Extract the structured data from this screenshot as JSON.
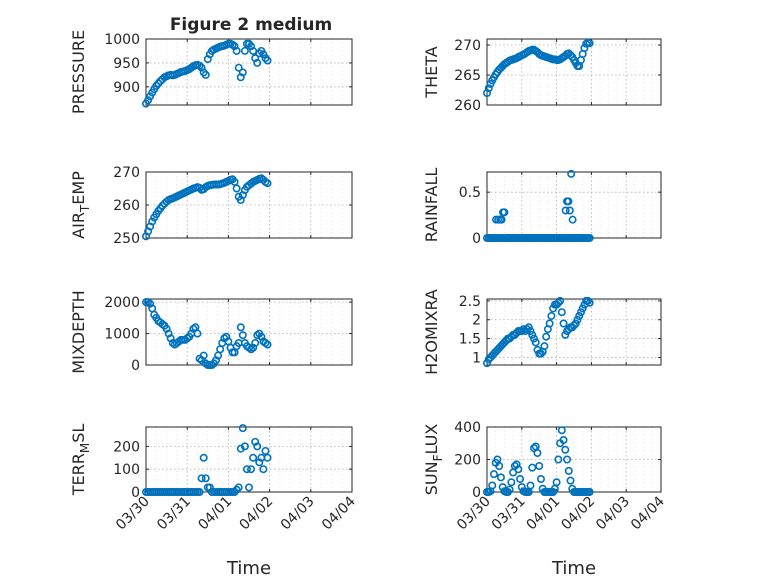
{
  "figure": {
    "title": "Figure 2 medium",
    "marker_color": "#0072BD",
    "marker": "circle"
  },
  "chart_data": [
    {
      "type": "scatter",
      "title": "Figure 2 medium",
      "ylabel": "PRESSURE",
      "ylim": [
        862,
        1000
      ],
      "yticks": [
        900,
        950,
        1000
      ],
      "yticklabels": [
        "900",
        "950",
        "1000"
      ],
      "xlim": [
        0,
        5
      ],
      "xticks": [
        0,
        1,
        2,
        3,
        4,
        5
      ],
      "xticklabels": [],
      "grid": true,
      "x": [
        0,
        0.05,
        0.1,
        0.15,
        0.2,
        0.25,
        0.3,
        0.35,
        0.4,
        0.45,
        0.5,
        0.55,
        0.6,
        0.65,
        0.7,
        0.75,
        0.8,
        0.85,
        0.9,
        0.95,
        1,
        1.05,
        1.1,
        1.15,
        1.2,
        1.25,
        1.3,
        1.35,
        1.4,
        1.45,
        1.5,
        1.55,
        1.6,
        1.65,
        1.7,
        1.75,
        1.8,
        1.85,
        1.9,
        1.95,
        2,
        2.05,
        2.1,
        2.15,
        2.2,
        2.25,
        2.3,
        2.35,
        2.4,
        2.45,
        2.5,
        2.55,
        2.6,
        2.65,
        2.7,
        2.75,
        2.8,
        2.85,
        2.9,
        2.95
      ],
      "y": [
        865,
        872,
        880,
        888,
        895,
        902,
        907,
        912,
        916,
        920,
        922,
        924,
        925,
        924,
        925,
        927,
        929,
        931,
        932,
        933,
        935,
        937,
        940,
        943,
        945,
        946,
        944,
        940,
        930,
        925,
        958,
        968,
        975,
        978,
        980,
        982,
        984,
        985,
        986,
        988,
        990,
        990,
        988,
        985,
        975,
        940,
        920,
        930,
        975,
        990,
        990,
        985,
        975,
        960,
        950,
        970,
        975,
        968,
        960,
        955
      ]
    },
    {
      "type": "scatter",
      "ylabel": "THETA",
      "ylim": [
        260,
        271
      ],
      "yticks": [
        260,
        265,
        270
      ],
      "yticklabels": [
        "260",
        "265",
        "270"
      ],
      "xlim": [
        0,
        5
      ],
      "xticks": [
        0,
        1,
        2,
        3,
        4,
        5
      ],
      "xticklabels": [],
      "grid": true,
      "x": [
        0,
        0.05,
        0.1,
        0.15,
        0.2,
        0.25,
        0.3,
        0.35,
        0.4,
        0.45,
        0.5,
        0.55,
        0.6,
        0.65,
        0.7,
        0.75,
        0.8,
        0.85,
        0.9,
        0.95,
        1,
        1.05,
        1.1,
        1.15,
        1.2,
        1.25,
        1.3,
        1.35,
        1.4,
        1.45,
        1.5,
        1.55,
        1.6,
        1.65,
        1.7,
        1.75,
        1.8,
        1.85,
        1.9,
        1.95,
        2,
        2.05,
        2.1,
        2.15,
        2.2,
        2.25,
        2.3,
        2.35,
        2.4,
        2.45,
        2.5,
        2.55,
        2.6,
        2.65,
        2.7,
        2.75,
        2.8,
        2.85,
        2.9,
        2.95
      ],
      "y": [
        262,
        262.8,
        263.5,
        264.1,
        264.6,
        265.1,
        265.5,
        265.9,
        266.2,
        266.5,
        266.8,
        267,
        267.2,
        267.4,
        267.5,
        267.6,
        267.7,
        267.8,
        268,
        268.1,
        268.3,
        268.4,
        268.6,
        268.8,
        269,
        269.1,
        269.2,
        269.2,
        269,
        268.8,
        268.5,
        268.3,
        268.2,
        268.1,
        268,
        267.9,
        267.8,
        267.7,
        267.6,
        267.6,
        267.5,
        267.5,
        267.6,
        267.8,
        268,
        268.2,
        268.5,
        268.6,
        268.3,
        268,
        267.5,
        267,
        266.5,
        266.5,
        267.5,
        268.5,
        269.5,
        270.2,
        270.4,
        270.3
      ]
    },
    {
      "type": "scatter",
      "ylabel": "AIR_TEMP",
      "ylim": [
        250,
        270
      ],
      "yticks": [
        250,
        260,
        270
      ],
      "yticklabels": [
        "250",
        "260",
        "270"
      ],
      "xlim": [
        0,
        5
      ],
      "xticks": [
        0,
        1,
        2,
        3,
        4,
        5
      ],
      "xticklabels": [],
      "grid": true,
      "x": [
        0,
        0.05,
        0.1,
        0.15,
        0.2,
        0.25,
        0.3,
        0.35,
        0.4,
        0.45,
        0.5,
        0.55,
        0.6,
        0.65,
        0.7,
        0.75,
        0.8,
        0.85,
        0.9,
        0.95,
        1,
        1.05,
        1.1,
        1.15,
        1.2,
        1.25,
        1.3,
        1.35,
        1.4,
        1.45,
        1.5,
        1.55,
        1.6,
        1.65,
        1.7,
        1.75,
        1.8,
        1.85,
        1.9,
        1.95,
        2,
        2.05,
        2.1,
        2.15,
        2.2,
        2.25,
        2.3,
        2.35,
        2.4,
        2.45,
        2.5,
        2.55,
        2.6,
        2.65,
        2.7,
        2.75,
        2.8,
        2.85,
        2.9,
        2.95
      ],
      "y": [
        250.5,
        252,
        253.5,
        255,
        256.2,
        257.2,
        258.2,
        259,
        259.8,
        260.4,
        261,
        261.5,
        261.8,
        262,
        262.3,
        262.6,
        262.9,
        263.2,
        263.5,
        263.8,
        264.1,
        264.4,
        264.7,
        265,
        265.2,
        265.4,
        265.2,
        264.6,
        264.8,
        265.4,
        265.8,
        266,
        266.1,
        266.2,
        266.2,
        266.2,
        266.3,
        266.5,
        266.7,
        267,
        267.3,
        267.6,
        267.8,
        267,
        265,
        262.5,
        261.5,
        263,
        264.5,
        265.5,
        266,
        266.5,
        267,
        267.3,
        267.6,
        267.9,
        268.1,
        267.6,
        267,
        266.6
      ]
    },
    {
      "type": "scatter",
      "ylabel": "RAINFALL",
      "ylim": [
        0,
        0.72
      ],
      "yticks": [
        0,
        0.5
      ],
      "yticklabels": [
        "0",
        "0.5"
      ],
      "xlim": [
        0,
        5
      ],
      "xticks": [
        0,
        1,
        2,
        3,
        4,
        5
      ],
      "xticklabels": [],
      "grid": true,
      "x": [
        0,
        0.05,
        0.1,
        0.15,
        0.2,
        0.25,
        0.3,
        0.35,
        0.4,
        0.45,
        0.5,
        0.55,
        0.6,
        0.65,
        0.7,
        0.75,
        0.8,
        0.85,
        0.9,
        0.95,
        1,
        1.05,
        1.1,
        1.15,
        1.2,
        1.25,
        1.3,
        1.35,
        1.4,
        1.45,
        1.5,
        1.55,
        1.6,
        1.65,
        1.7,
        1.75,
        1.8,
        1.85,
        1.9,
        1.95,
        2,
        2.05,
        2.1,
        2.15,
        2.2,
        2.25,
        2.3,
        2.35,
        2.4,
        2.45,
        2.5,
        2.55,
        2.6,
        2.65,
        2.7,
        2.75,
        2.8,
        2.85,
        2.9,
        2.95,
        0.26,
        0.32,
        0.38,
        0.42,
        0.46,
        0.5,
        2.26,
        2.3,
        2.34,
        2.38,
        2.42,
        2.46
      ],
      "y": [
        0,
        0,
        0,
        0,
        0,
        0,
        0,
        0,
        0,
        0,
        0,
        0,
        0,
        0,
        0,
        0,
        0,
        0,
        0,
        0,
        0,
        0,
        0,
        0,
        0,
        0,
        0,
        0,
        0,
        0,
        0,
        0,
        0,
        0,
        0,
        0,
        0,
        0,
        0,
        0,
        0,
        0,
        0,
        0,
        0,
        0,
        0,
        0,
        0,
        0,
        0,
        0,
        0,
        0,
        0,
        0,
        0,
        0,
        0,
        0,
        0.2,
        0.2,
        0.2,
        0.2,
        0.28,
        0.28,
        0.3,
        0.4,
        0.4,
        0.3,
        0.7,
        0.2
      ]
    },
    {
      "type": "scatter",
      "ylabel": "MIXDEPTH",
      "ylim": [
        0,
        2100
      ],
      "yticks": [
        0,
        1000,
        2000
      ],
      "yticklabels": [
        "0",
        "1000",
        "2000"
      ],
      "xlim": [
        0,
        5
      ],
      "xticks": [
        0,
        1,
        2,
        3,
        4,
        5
      ],
      "xticklabels": [],
      "grid": true,
      "x": [
        0,
        0.05,
        0.1,
        0.15,
        0.2,
        0.25,
        0.3,
        0.35,
        0.4,
        0.45,
        0.5,
        0.55,
        0.6,
        0.65,
        0.7,
        0.75,
        0.8,
        0.85,
        0.9,
        0.95,
        1,
        1.05,
        1.1,
        1.15,
        1.2,
        1.25,
        1.3,
        1.35,
        1.4,
        1.45,
        1.5,
        1.55,
        1.6,
        1.65,
        1.7,
        1.75,
        1.8,
        1.85,
        1.9,
        1.95,
        2,
        2.05,
        2.1,
        2.15,
        2.2,
        2.25,
        2.3,
        2.35,
        2.4,
        2.45,
        2.5,
        2.55,
        2.6,
        2.65,
        2.7,
        2.75,
        2.8,
        2.85,
        2.9,
        2.95
      ],
      "y": [
        2000,
        2000,
        1950,
        1800,
        1600,
        1500,
        1400,
        1350,
        1300,
        1250,
        1150,
        1000,
        850,
        700,
        650,
        700,
        750,
        800,
        800,
        800,
        850,
        900,
        1000,
        1150,
        1200,
        1000,
        200,
        150,
        300,
        50,
        0,
        0,
        0,
        50,
        150,
        300,
        500,
        700,
        850,
        900,
        750,
        550,
        400,
        400,
        600,
        700,
        1200,
        950,
        700,
        600,
        550,
        500,
        550,
        700,
        950,
        1000,
        900,
        750,
        700,
        650
      ]
    },
    {
      "type": "scatter",
      "ylabel": "H2OMIXRA",
      "ylim": [
        0.8,
        2.55
      ],
      "yticks": [
        1,
        1.5,
        2,
        2.5
      ],
      "yticklabels": [
        "1",
        "1.5",
        "2",
        "2.5"
      ],
      "xlim": [
        0,
        5
      ],
      "xticks": [
        0,
        1,
        2,
        3,
        4,
        5
      ],
      "xticklabels": [],
      "grid": true,
      "x": [
        0,
        0.05,
        0.1,
        0.15,
        0.2,
        0.25,
        0.3,
        0.35,
        0.4,
        0.45,
        0.5,
        0.55,
        0.6,
        0.65,
        0.7,
        0.75,
        0.8,
        0.85,
        0.9,
        0.95,
        1,
        1.05,
        1.1,
        1.15,
        1.2,
        1.25,
        1.3,
        1.35,
        1.4,
        1.45,
        1.5,
        1.55,
        1.6,
        1.65,
        1.7,
        1.75,
        1.8,
        1.85,
        1.9,
        1.95,
        2,
        2.05,
        2.1,
        2.15,
        2.2,
        2.25,
        2.3,
        2.35,
        2.4,
        2.45,
        2.5,
        2.55,
        2.6,
        2.65,
        2.7,
        2.75,
        2.8,
        2.85,
        2.9,
        2.95
      ],
      "y": [
        0.85,
        0.95,
        1.0,
        1.05,
        1.1,
        1.15,
        1.2,
        1.25,
        1.3,
        1.35,
        1.4,
        1.45,
        1.5,
        1.5,
        1.55,
        1.6,
        1.6,
        1.65,
        1.7,
        1.7,
        1.7,
        1.75,
        1.7,
        1.75,
        1.8,
        1.7,
        1.6,
        1.5,
        1.4,
        1.2,
        1.1,
        1.1,
        1.15,
        1.3,
        1.55,
        1.75,
        1.9,
        2.1,
        2.3,
        2.4,
        2.4,
        2.45,
        2.5,
        2.2,
        1.9,
        1.6,
        1.7,
        1.75,
        1.8,
        1.8,
        1.85,
        1.9,
        2.0,
        2.1,
        2.2,
        2.3,
        2.4,
        2.5,
        2.5,
        2.45
      ]
    },
    {
      "type": "scatter",
      "ylabel": "TERR_MSL",
      "ylim": [
        0,
        285
      ],
      "yticks": [
        0,
        100,
        200
      ],
      "yticklabels": [
        "0",
        "100",
        "200"
      ],
      "xlim": [
        0,
        5
      ],
      "xticks": [
        0,
        1,
        2,
        3,
        4,
        5
      ],
      "xticklabels": [
        "03/30",
        "03/31",
        "04/01",
        "04/02",
        "04/03",
        "04/04"
      ],
      "xlabel": "Time",
      "grid": true,
      "x": [
        0,
        0.05,
        0.1,
        0.15,
        0.2,
        0.25,
        0.3,
        0.35,
        0.4,
        0.45,
        0.5,
        0.55,
        0.6,
        0.65,
        0.7,
        0.75,
        0.8,
        0.85,
        0.9,
        0.95,
        1,
        1.05,
        1.1,
        1.15,
        1.2,
        1.25,
        1.3,
        1.35,
        1.4,
        1.45,
        1.5,
        1.55,
        1.6,
        1.65,
        1.7,
        1.75,
        1.8,
        1.85,
        1.9,
        1.95,
        2,
        2.05,
        2.1,
        2.15,
        2.2,
        2.25,
        2.3,
        2.35,
        2.4,
        2.45,
        2.5,
        2.55,
        2.6,
        2.65,
        2.7,
        2.75,
        2.8,
        2.85,
        2.9,
        2.95
      ],
      "y": [
        0,
        0,
        0,
        0,
        0,
        0,
        0,
        0,
        0,
        0,
        0,
        0,
        0,
        0,
        0,
        0,
        0,
        0,
        0,
        0,
        0,
        0,
        0,
        0,
        0,
        0,
        0,
        60,
        150,
        60,
        20,
        20,
        0,
        0,
        0,
        0,
        0,
        0,
        0,
        0,
        0,
        0,
        0,
        0,
        10,
        20,
        190,
        280,
        200,
        100,
        20,
        100,
        150,
        220,
        200,
        130,
        150,
        100,
        180,
        150
      ]
    },
    {
      "type": "scatter",
      "ylabel": "SUN_FLUX",
      "ylim": [
        0,
        400
      ],
      "yticks": [
        0,
        200,
        400
      ],
      "yticklabels": [
        "0",
        "200",
        "400"
      ],
      "xlim": [
        0,
        5
      ],
      "xticks": [
        0,
        1,
        2,
        3,
        4,
        5
      ],
      "xticklabels": [
        "03/30",
        "03/31",
        "04/01",
        "04/02",
        "04/03",
        "04/04"
      ],
      "xlabel": "Time",
      "grid": true,
      "x": [
        0,
        0.05,
        0.1,
        0.15,
        0.2,
        0.25,
        0.3,
        0.35,
        0.4,
        0.45,
        0.5,
        0.55,
        0.6,
        0.65,
        0.7,
        0.75,
        0.8,
        0.85,
        0.9,
        0.95,
        1,
        1.05,
        1.1,
        1.15,
        1.2,
        1.25,
        1.3,
        1.35,
        1.4,
        1.45,
        1.5,
        1.55,
        1.6,
        1.65,
        1.7,
        1.75,
        1.8,
        1.85,
        1.9,
        1.95,
        2,
        2.05,
        2.1,
        2.15,
        2.2,
        2.25,
        2.3,
        2.35,
        2.4,
        2.45,
        2.5,
        2.55,
        2.6,
        2.65,
        2.7,
        2.75,
        2.8,
        2.85,
        2.9,
        2.95
      ],
      "y": [
        0,
        0,
        5,
        40,
        110,
        180,
        200,
        160,
        90,
        30,
        5,
        0,
        0,
        15,
        60,
        120,
        160,
        170,
        140,
        80,
        30,
        5,
        0,
        0,
        0,
        40,
        150,
        270,
        280,
        240,
        160,
        80,
        20,
        0,
        0,
        0,
        0,
        0,
        0,
        20,
        60,
        200,
        300,
        380,
        320,
        260,
        200,
        130,
        70,
        20,
        0,
        0,
        0,
        0,
        0,
        0,
        0,
        0,
        0,
        0
      ]
    }
  ]
}
